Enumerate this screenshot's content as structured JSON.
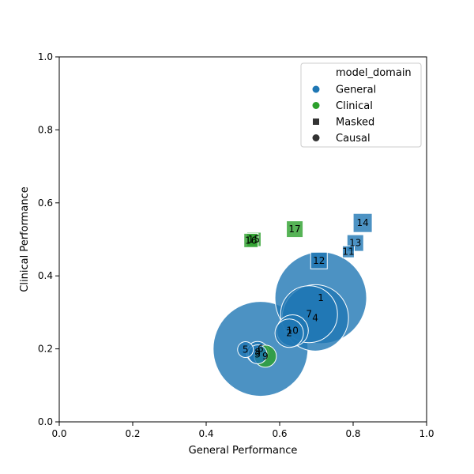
{
  "chart_data": {
    "type": "scatter",
    "title": "",
    "xlabel": "General Performance",
    "ylabel": "Clinical Performance",
    "xlim": [
      0,
      1
    ],
    "ylim": [
      0,
      1
    ],
    "xticks": [
      "0.0",
      "0.2",
      "0.4",
      "0.6",
      "0.8",
      "1.0"
    ],
    "yticks": [
      "0.0",
      "0.2",
      "0.4",
      "0.6",
      "0.8",
      "1.0"
    ],
    "grid": false,
    "legend": {
      "placement": "top-right",
      "title": "model_domain",
      "entries": [
        {
          "label": "General",
          "marker": "circle",
          "color": "#1f77b4"
        },
        {
          "label": "Clinical",
          "marker": "circle",
          "color": "#2ca02c"
        },
        {
          "label": "Masked",
          "marker": "square",
          "color": "#333333"
        },
        {
          "label": "Causal",
          "marker": "circle",
          "color": "#333333"
        }
      ]
    },
    "colors": {
      "General": "#1f77b4",
      "Clinical": "#2ca02c"
    },
    "size_scale_note_hidden": "",
    "points": [
      {
        "label": "1",
        "x": 0.712,
        "y": 0.34,
        "domain": "General",
        "type": "Causal",
        "size": 58
      },
      {
        "label": "2",
        "x": 0.626,
        "y": 0.243,
        "domain": "General",
        "type": "Causal",
        "size": 18
      },
      {
        "label": "3",
        "x": 0.54,
        "y": 0.185,
        "domain": "General",
        "type": "Causal",
        "size": 12
      },
      {
        "label": "4",
        "x": 0.697,
        "y": 0.285,
        "domain": "General",
        "type": "Causal",
        "size": 42
      },
      {
        "label": "5",
        "x": 0.507,
        "y": 0.198,
        "domain": "General",
        "type": "Causal",
        "size": 10
      },
      {
        "label": "6",
        "x": 0.548,
        "y": 0.2,
        "domain": "General",
        "type": "Causal",
        "size": 60
      },
      {
        "label": "7",
        "x": 0.68,
        "y": 0.295,
        "domain": "General",
        "type": "Causal",
        "size": 36
      },
      {
        "label": "8",
        "x": 0.54,
        "y": 0.19,
        "domain": "General",
        "type": "Causal",
        "size": 14
      },
      {
        "label": "9",
        "x": 0.561,
        "y": 0.18,
        "domain": "Clinical",
        "type": "Causal",
        "size": 14
      },
      {
        "label": "10",
        "x": 0.635,
        "y": 0.25,
        "domain": "General",
        "type": "Causal",
        "size": 20
      },
      {
        "label": "11",
        "x": 0.787,
        "y": 0.466,
        "domain": "General",
        "type": "Masked",
        "size": 5
      },
      {
        "label": "12",
        "x": 0.707,
        "y": 0.442,
        "domain": "General",
        "type": "Masked",
        "size": 7
      },
      {
        "label": "13",
        "x": 0.806,
        "y": 0.49,
        "domain": "General",
        "type": "Masked",
        "size": 7
      },
      {
        "label": "14",
        "x": 0.826,
        "y": 0.545,
        "domain": "General",
        "type": "Masked",
        "size": 8
      },
      {
        "label": "15",
        "x": 0.53,
        "y": 0.5,
        "domain": "Clinical",
        "type": "Masked",
        "size": 6
      },
      {
        "label": "16",
        "x": 0.522,
        "y": 0.497,
        "domain": "Clinical",
        "type": "Masked",
        "size": 6
      },
      {
        "label": "17",
        "x": 0.641,
        "y": 0.528,
        "domain": "Clinical",
        "type": "Masked",
        "size": 7
      }
    ]
  }
}
